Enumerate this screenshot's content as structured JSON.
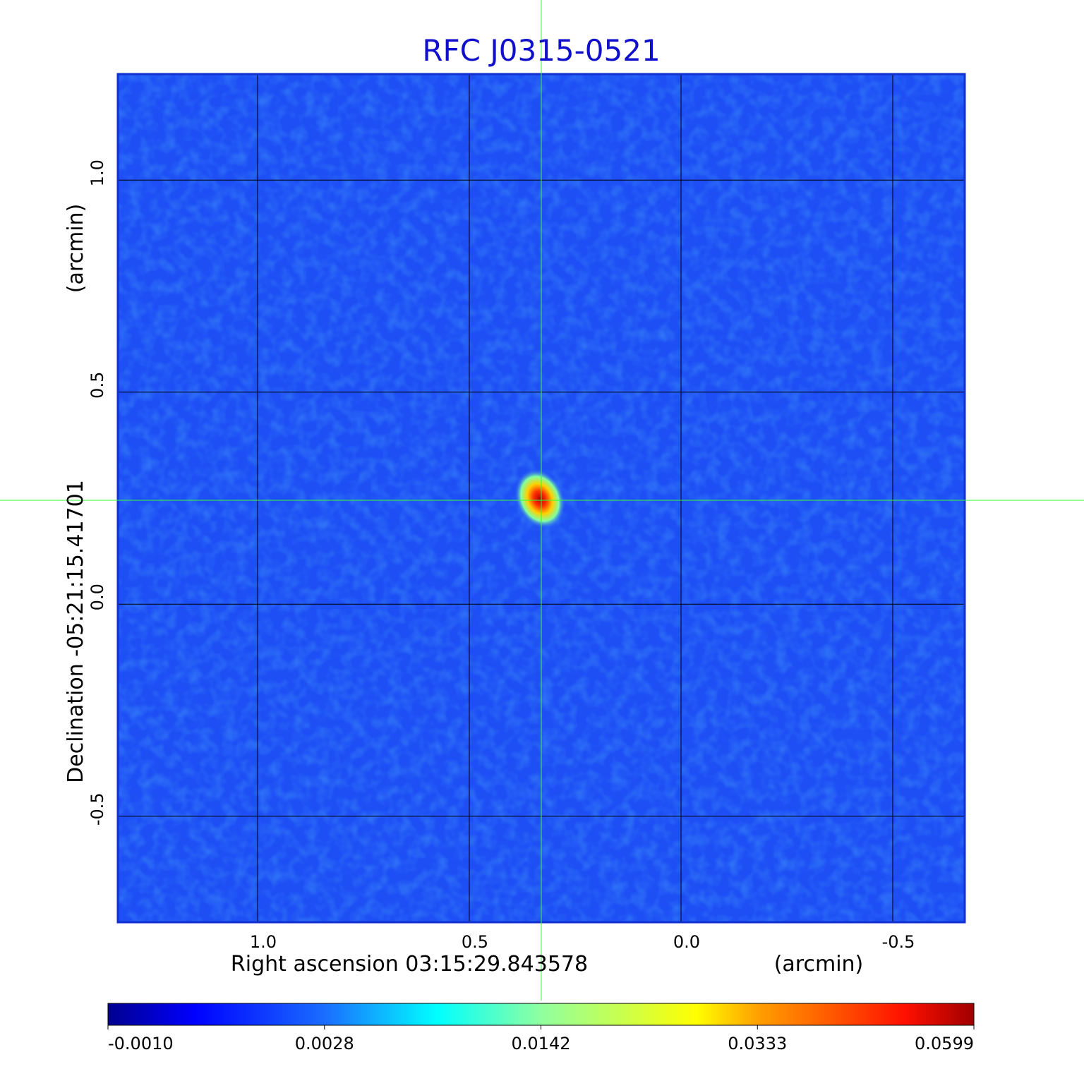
{
  "chart_data": {
    "type": "image",
    "title": "RFC J0315-0521",
    "x_label": "Right ascension  03:15:29.843578",
    "x_unit": "(arcmin)",
    "y_label": "Declination  -05:21:15.41701",
    "y_unit": "(arcmin)",
    "xlim": [
      1.33,
      -0.67
    ],
    "ylim": [
      -0.75,
      1.25
    ],
    "xticks": [
      {
        "value": 1.0,
        "label": "1.0"
      },
      {
        "value": 0.5,
        "label": "0.5"
      },
      {
        "value": 0.0,
        "label": "0.0"
      },
      {
        "value": -0.5,
        "label": "-0.5"
      }
    ],
    "yticks": [
      {
        "value": 1.0,
        "label": "1.0"
      },
      {
        "value": 0.5,
        "label": "0.5"
      },
      {
        "value": 0.0,
        "label": "0.0"
      },
      {
        "value": -0.5,
        "label": "-0.5"
      }
    ],
    "grid": true,
    "colorbar_ticks": [
      {
        "value": -0.001,
        "label": "-0.0010"
      },
      0.0028,
      0.0142,
      0.0333,
      0.0599
    ]
  }
}
